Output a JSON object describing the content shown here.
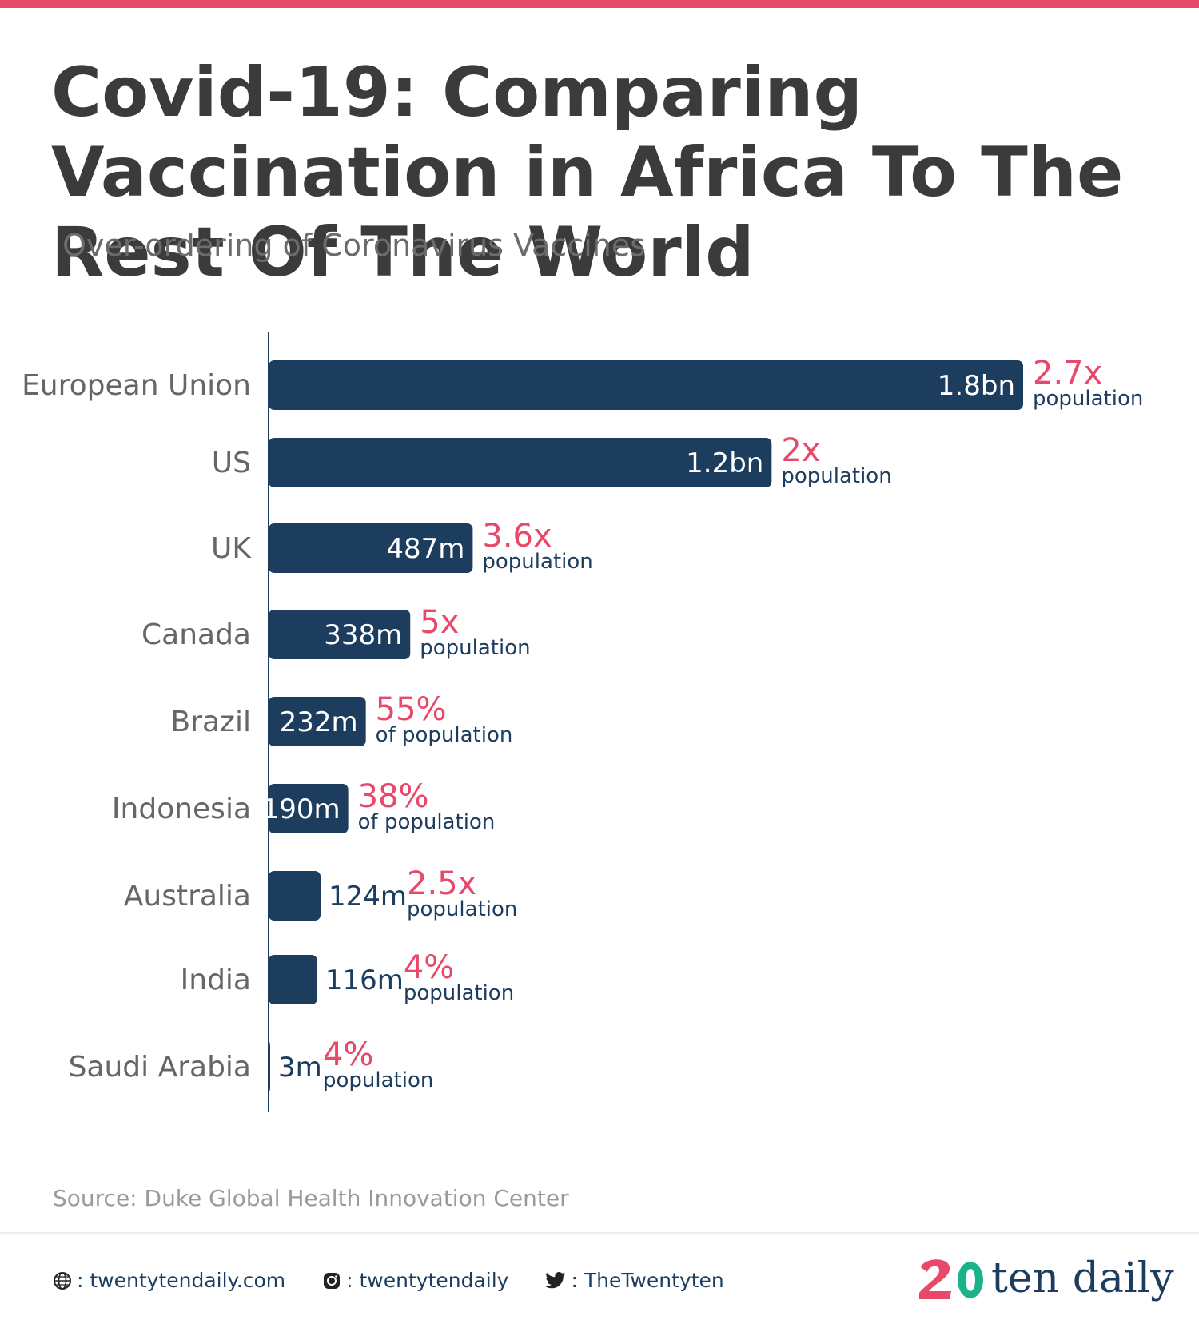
{
  "header": {
    "title": "Covid-19: Comparing Vaccination in Africa To The Rest Of The World",
    "subtitle": "Over-ordering of Coronavirus Vaccines"
  },
  "chart_data": {
    "type": "bar",
    "orientation": "horizontal",
    "categories": [
      "European Union",
      "US",
      "UK",
      "Canada",
      "Brazil",
      "Indonesia",
      "Australia",
      "India",
      "Saudi Arabia"
    ],
    "values": [
      1800,
      1200,
      487,
      338,
      232,
      190,
      124,
      116,
      3
    ],
    "value_unit": "million doses",
    "value_labels": [
      "1.8bn",
      "1.2bn",
      "487m",
      "338m",
      "232m",
      "190m",
      "124m",
      "116m",
      "3m"
    ],
    "annotations": [
      {
        "main": "2.7x",
        "sub": "population"
      },
      {
        "main": "2x",
        "sub": "population"
      },
      {
        "main": "3.6x",
        "sub": "population"
      },
      {
        "main": "5x",
        "sub": "population"
      },
      {
        "main": "55%",
        "sub": "of population"
      },
      {
        "main": "38%",
        "sub": "of population"
      },
      {
        "main": "2.5x",
        "sub": "population"
      },
      {
        "main": "4%",
        "sub": "population"
      },
      {
        "main": "4%",
        "sub": "population"
      }
    ],
    "xlim": [
      0,
      1800
    ],
    "grid": false,
    "bar_color": "#1d3d5f",
    "annotation_color": "#e8496a"
  },
  "source": "Source: Duke Global Health Innovation Center",
  "footer": {
    "website": ": twentytendaily.com",
    "instagram": ": twentytendaily",
    "twitter": ": TheTwentyten",
    "website_icon": "globe-icon",
    "instagram_icon": "instagram-icon",
    "twitter_icon": "twitter-icon"
  },
  "brand": {
    "logo_text": "ten daily",
    "accent": "#e8496a",
    "secondary": "#1ab38a"
  }
}
